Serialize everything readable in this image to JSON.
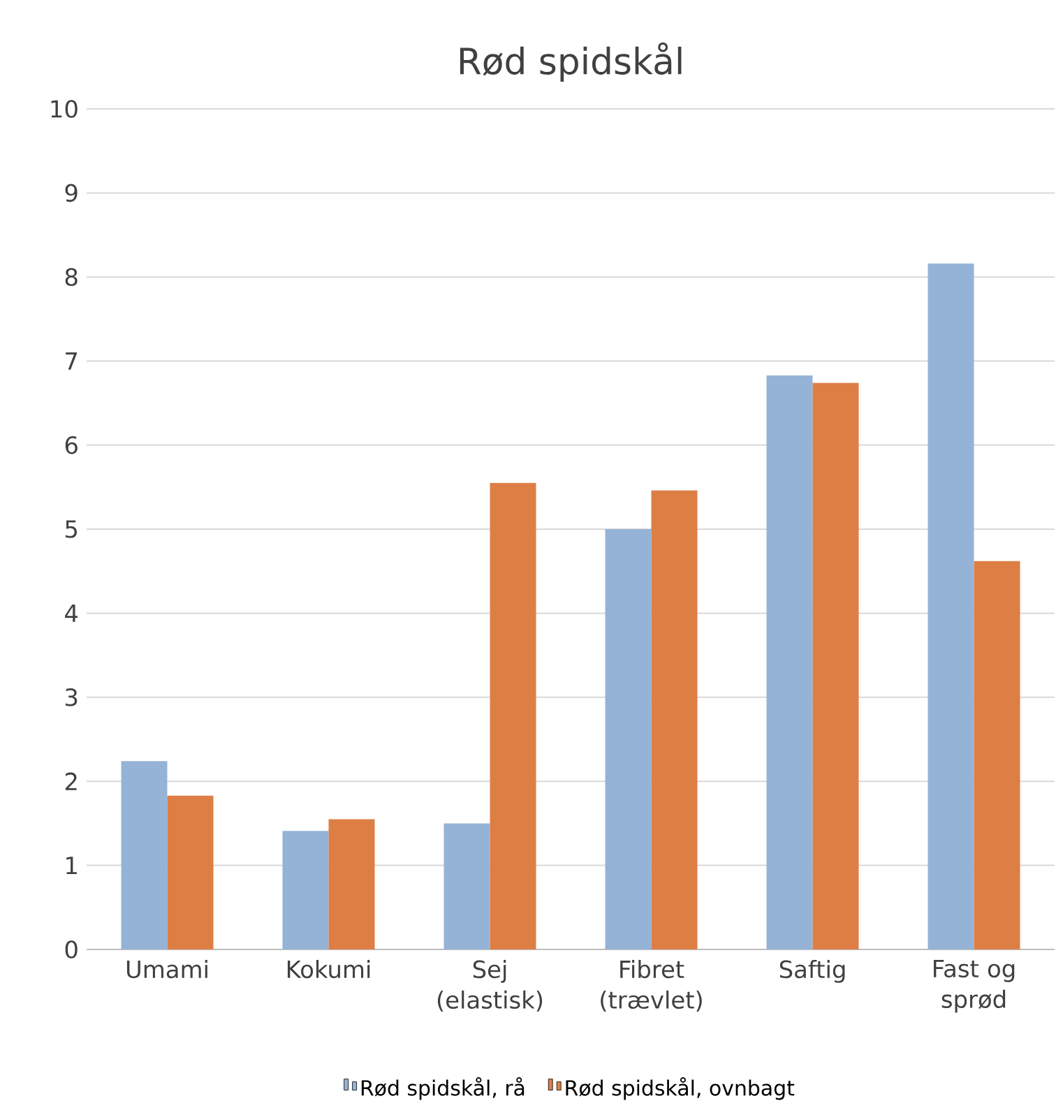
{
  "chart_data": {
    "type": "bar",
    "title": "Rød spidskål",
    "categories": [
      "Umami",
      "Kokumi",
      "Sej (elastisk)",
      "Fibret (trævlet)",
      "Saftig",
      "Fast og sprød"
    ],
    "series": [
      {
        "name": "Rød spidskål, rå",
        "color": "#95b3d7",
        "values": [
          2.24,
          1.41,
          1.5,
          5.0,
          6.83,
          8.16
        ]
      },
      {
        "name": "Rød spidskål, ovnbagt",
        "color": "#dd7f45",
        "values": [
          1.83,
          1.55,
          5.55,
          5.46,
          6.74,
          4.62
        ]
      }
    ],
    "ylim": [
      0,
      10
    ],
    "yticks": [
      0,
      1,
      2,
      3,
      4,
      5,
      6,
      7,
      8,
      9,
      10
    ],
    "grid": "y",
    "legend": "bottom"
  }
}
